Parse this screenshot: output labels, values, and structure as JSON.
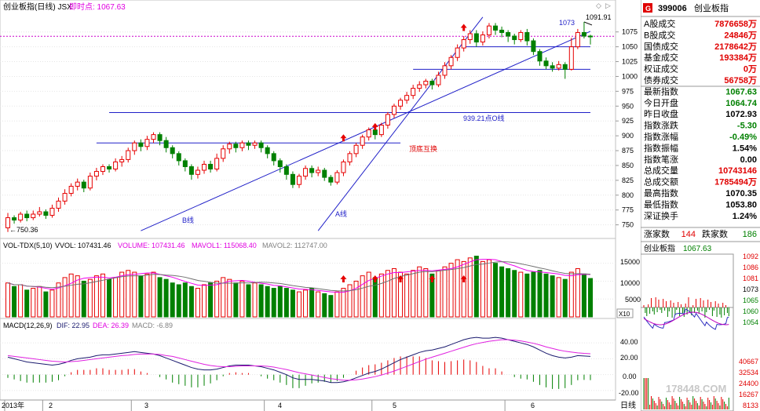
{
  "header": {
    "title": "创业板指(日线) JSX",
    "instant_label": "即时点: 1067.63"
  },
  "annotations": {
    "high_label": "1091.91",
    "left_low_label": "←750.36",
    "line_1073": "1073",
    "neckline_label": "939.21点O线",
    "b_line": "B线",
    "a_line": "A线",
    "top_bottom": "顶底互换"
  },
  "volume_panel": {
    "legend": {
      "name": "VOL-TDX(5,10)",
      "vvol": "VVOL: 107431.46",
      "volume": "VOLUME: 107431.46",
      "mavol1": "MAVOL1: 115068.40",
      "mavol2": "MAVOL2: 112747.00"
    },
    "y_ticks": [
      "15000",
      "10000",
      "5000"
    ],
    "unit": "X10"
  },
  "macd_panel": {
    "legend": {
      "name": "MACD(12,26,9)",
      "dif": "DIF: 22.95",
      "dea": "DEA: 26.39",
      "macd": "MACD: -6.89"
    },
    "y_ticks": [
      "40.00",
      "20.00",
      "0.00",
      "-20.00"
    ]
  },
  "x_axis": {
    "labels": [
      "2013年",
      "2",
      "3",
      "4",
      "5",
      "6"
    ],
    "period": "日线"
  },
  "sidebar": {
    "code": "399006",
    "name": "创业板指",
    "badge": "G",
    "rows": [
      {
        "label": "A股成交",
        "value": "7876658万"
      },
      {
        "label": "B股成交",
        "value": "24846万"
      },
      {
        "label": "国债成交",
        "value": "2178642万"
      },
      {
        "label": "基金成交",
        "value": "193384万"
      },
      {
        "label": "权证成交",
        "value": "0万"
      },
      {
        "label": "债券成交",
        "value": "56758万"
      },
      {
        "label": "最新指数",
        "value": "1067.63"
      },
      {
        "label": "今日开盘",
        "value": "1064.74"
      },
      {
        "label": "昨日收盘",
        "value": "1072.93"
      },
      {
        "label": "指数涨跌",
        "value": "-5.30"
      },
      {
        "label": "指数涨幅",
        "value": "-0.49%"
      },
      {
        "label": "指数振幅",
        "value": "1.54%"
      },
      {
        "label": "指数笔涨",
        "value": "0.00"
      },
      {
        "label": "总成交量",
        "value": "10743146"
      },
      {
        "label": "总成交额",
        "value": "1785494万"
      },
      {
        "label": "最高指数",
        "value": "1070.35"
      },
      {
        "label": "最低指数",
        "value": "1053.80"
      },
      {
        "label": "深证换手",
        "value": "1.24%"
      }
    ],
    "rise_label": "涨家数",
    "rise_value": "144",
    "fall_label": "跌家数",
    "fall_value": "186",
    "mini_title": "创业板指",
    "mini_price": "1067.63",
    "mini_ticks": [
      "1092",
      "1086",
      "1081",
      "1073",
      "1065",
      "1060",
      "1054"
    ],
    "mini_vol_ticks": [
      "40667",
      "32534",
      "24400",
      "16267",
      "8133"
    ]
  },
  "watermark": "178448.COM",
  "colors": {
    "up": "#e60000",
    "down": "#008000",
    "trend": "#2020c8",
    "ma1": "#ee00ee",
    "dif": "#1a1a6e",
    "dea": "#e020e0",
    "dashed": "#cc00cc"
  },
  "chart_data": [
    {
      "type": "candlestick",
      "title": "创业板指(日线)",
      "ylim": [
        735,
        1105
      ],
      "y_ticks": [
        750,
        775,
        800,
        825,
        850,
        875,
        900,
        925,
        950,
        975,
        1000,
        1025,
        1050,
        1075
      ],
      "x_labels": [
        "2013年",
        "2",
        "3",
        "4",
        "5",
        "6"
      ],
      "candles": [
        [
          745,
          762,
          738,
          770
        ],
        [
          762,
          758,
          752,
          766
        ],
        [
          758,
          768,
          754,
          772
        ],
        [
          768,
          762,
          756,
          774
        ],
        [
          762,
          768,
          758,
          774
        ],
        [
          768,
          772,
          764,
          780
        ],
        [
          772,
          766,
          760,
          776
        ],
        [
          766,
          778,
          762,
          784
        ],
        [
          778,
          790,
          772,
          796
        ],
        [
          790,
          803,
          784,
          810
        ],
        [
          803,
          815,
          798,
          820
        ],
        [
          815,
          822,
          808,
          828
        ],
        [
          822,
          812,
          805,
          826
        ],
        [
          812,
          832,
          808,
          838
        ],
        [
          832,
          840,
          825,
          846
        ],
        [
          840,
          848,
          834,
          852
        ],
        [
          848,
          844,
          838,
          852
        ],
        [
          844,
          856,
          840,
          862
        ],
        [
          856,
          860,
          848,
          866
        ],
        [
          860,
          875,
          855,
          880
        ],
        [
          875,
          888,
          868,
          892
        ],
        [
          888,
          882,
          874,
          894
        ],
        [
          882,
          894,
          876,
          900
        ],
        [
          894,
          902,
          888,
          906
        ],
        [
          902,
          892,
          884,
          906
        ],
        [
          892,
          880,
          872,
          898
        ],
        [
          880,
          870,
          862,
          884
        ],
        [
          870,
          858,
          850,
          874
        ],
        [
          858,
          848,
          840,
          862
        ],
        [
          848,
          835,
          826,
          852
        ],
        [
          835,
          842,
          828,
          848
        ],
        [
          842,
          852,
          836,
          858
        ],
        [
          852,
          844,
          838,
          858
        ],
        [
          844,
          862,
          840,
          870
        ],
        [
          862,
          878,
          856,
          884
        ],
        [
          878,
          886,
          870,
          890
        ],
        [
          886,
          880,
          872,
          890
        ],
        [
          880,
          888,
          874,
          892
        ],
        [
          888,
          884,
          876,
          892
        ],
        [
          884,
          888,
          878,
          892
        ],
        [
          888,
          880,
          872,
          892
        ],
        [
          880,
          870,
          862,
          884
        ],
        [
          870,
          858,
          850,
          874
        ],
        [
          858,
          848,
          838,
          862
        ],
        [
          848,
          835,
          826,
          852
        ],
        [
          835,
          818,
          812,
          840
        ],
        [
          818,
          832,
          812,
          836
        ],
        [
          832,
          845,
          826,
          850
        ],
        [
          845,
          838,
          830,
          850
        ],
        [
          838,
          842,
          832,
          848
        ],
        [
          842,
          830,
          824,
          846
        ],
        [
          830,
          822,
          816,
          834
        ],
        [
          822,
          838,
          818,
          842
        ],
        [
          838,
          856,
          832,
          860
        ],
        [
          856,
          870,
          850,
          874
        ],
        [
          870,
          884,
          864,
          888
        ],
        [
          884,
          898,
          878,
          902
        ],
        [
          898,
          910,
          892,
          914
        ],
        [
          910,
          902,
          894,
          914
        ],
        [
          902,
          918,
          898,
          922
        ],
        [
          918,
          936,
          912,
          940
        ],
        [
          936,
          950,
          930,
          954
        ],
        [
          950,
          960,
          944,
          964
        ],
        [
          960,
          968,
          954,
          974
        ],
        [
          968,
          980,
          962,
          986
        ],
        [
          980,
          986,
          974,
          992
        ],
        [
          986,
          992,
          980,
          996
        ],
        [
          992,
          986,
          978,
          996
        ],
        [
          986,
          1002,
          982,
          1008
        ],
        [
          1002,
          1018,
          996,
          1024
        ],
        [
          1018,
          1032,
          1012,
          1036
        ],
        [
          1032,
          1048,
          1026,
          1054
        ],
        [
          1048,
          1062,
          1042,
          1068
        ],
        [
          1062,
          1072,
          1055,
          1078
        ],
        [
          1072,
          1058,
          1050,
          1078
        ],
        [
          1058,
          1070,
          1052,
          1076
        ],
        [
          1070,
          1085,
          1064,
          1090
        ],
        [
          1085,
          1078,
          1070,
          1090
        ],
        [
          1078,
          1074,
          1066,
          1084
        ],
        [
          1074,
          1068,
          1058,
          1078
        ],
        [
          1068,
          1062,
          1054,
          1072
        ],
        [
          1062,
          1074,
          1058,
          1078
        ],
        [
          1074,
          1060,
          1052,
          1080
        ],
        [
          1060,
          1042,
          1036,
          1064
        ],
        [
          1042,
          1026,
          1018,
          1046
        ],
        [
          1026,
          1018,
          1012,
          1032
        ],
        [
          1018,
          1014,
          1008,
          1024
        ],
        [
          1014,
          1020,
          1010,
          1026
        ],
        [
          1020,
          1012,
          996,
          1024
        ],
        [
          1012,
          1050,
          1010,
          1065
        ],
        [
          1050,
          1074,
          1046,
          1080
        ],
        [
          1074,
          1068,
          1064,
          1091.91
        ],
        [
          1068,
          1067.63,
          1053.8,
          1070.35
        ]
      ]
    },
    {
      "type": "bar",
      "title": "VOL-TDX(5,10)",
      "ylim": [
        0,
        18000
      ],
      "series": [
        {
          "name": "VOLUME",
          "values": [
            9500,
            8500,
            9000,
            7500,
            8000,
            8500,
            7000,
            7500,
            9500,
            11000,
            12000,
            11500,
            10000,
            10500,
            11500,
            12000,
            10500,
            11000,
            12500,
            13000,
            12500,
            11500,
            12000,
            12500,
            11000,
            10500,
            9500,
            9000,
            9500,
            8500,
            8000,
            9000,
            9500,
            10000,
            11000,
            10500,
            9500,
            10000,
            9000,
            9500,
            9000,
            8500,
            8000,
            8500,
            8000,
            7500,
            7000,
            7500,
            8000,
            7000,
            6500,
            6000,
            7000,
            8000,
            9000,
            10000,
            11500,
            12500,
            11000,
            12000,
            13000,
            13500,
            12500,
            12000,
            13000,
            14000,
            13500,
            12000,
            13000,
            14000,
            15000,
            16000,
            15500,
            16500,
            17000,
            15500,
            16000,
            15000,
            14000,
            13500,
            13000,
            12500,
            12000,
            12500,
            13000,
            12000,
            11500,
            11000,
            10500,
            12500,
            13500,
            12000,
            10743.146
          ]
        },
        {
          "name": "MAVOL1"
        },
        {
          "name": "MAVOL2"
        }
      ]
    },
    {
      "type": "line",
      "title": "MACD(12,26,9)",
      "ylim": [
        -28,
        55
      ],
      "series": [
        {
          "name": "DIF",
          "values": [
            22,
            20,
            18,
            16,
            15,
            14,
            13,
            12,
            13,
            15,
            18,
            20,
            21,
            22,
            24,
            25,
            25,
            26,
            27,
            28,
            29,
            28,
            27,
            26,
            24,
            21,
            18,
            15,
            12,
            9,
            7,
            6,
            6,
            7,
            9,
            11,
            12,
            12,
            12,
            11,
            10,
            8,
            6,
            3,
            0,
            -4,
            -6,
            -6,
            -6,
            -7,
            -8,
            -10,
            -10,
            -9,
            -7,
            -4,
            -1,
            2,
            4,
            7,
            11,
            15,
            19,
            22,
            25,
            28,
            30,
            31,
            33,
            35,
            38,
            41,
            44,
            46,
            47,
            46,
            46,
            47,
            46,
            44,
            42,
            40,
            38,
            35,
            31,
            27,
            24,
            22,
            21,
            22,
            24,
            23.5,
            22.95
          ]
        },
        {
          "name": "DEA",
          "values": [
            24,
            23,
            22,
            21,
            20,
            19,
            18,
            17,
            16.5,
            16,
            16.5,
            17,
            18,
            19,
            20,
            21,
            22,
            23,
            24,
            24.5,
            25.5,
            26,
            26,
            26,
            25.5,
            24,
            23,
            21,
            19,
            17,
            15,
            13,
            11.5,
            10.5,
            10,
            10,
            10.5,
            11,
            11,
            11,
            11,
            10.5,
            9.5,
            8,
            6.5,
            4.5,
            2.5,
            1,
            -0.5,
            -2,
            -3.5,
            -5,
            -6,
            -7,
            -7,
            -6.5,
            -5.5,
            -4,
            -2.5,
            -0.5,
            2,
            4.5,
            7.5,
            10.5,
            13.5,
            16.5,
            19.5,
            22,
            24.5,
            27,
            29.5,
            32,
            34.5,
            37,
            39,
            40.5,
            42,
            43,
            44,
            44,
            43.5,
            42.5,
            41,
            39.5,
            37.5,
            35,
            33,
            31,
            29.5,
            28.5,
            27.5,
            26.8,
            26.39
          ]
        },
        {
          "name": "MACD",
          "values": [
            -4,
            -6,
            -8,
            -10,
            -10,
            -10,
            -10,
            -9,
            -7,
            -2,
            3,
            6,
            6,
            6,
            8,
            8,
            6,
            6,
            6,
            7,
            7,
            4,
            2,
            0,
            -3,
            -6,
            -10,
            -12,
            -14,
            -16,
            -16,
            -14,
            -11,
            -7,
            -2,
            2,
            3,
            2,
            2,
            0,
            -2,
            -5,
            -7,
            -10,
            -13,
            -17,
            -17,
            -14,
            -11,
            -10,
            -9,
            -10,
            -8,
            -4,
            0,
            5,
            9,
            12,
            13,
            15,
            18,
            21,
            23,
            23,
            23,
            23,
            21,
            18,
            17,
            16,
            17,
            18,
            19,
            18,
            16,
            11,
            8,
            8,
            4,
            0,
            -3,
            -5,
            -6,
            -9,
            -13,
            -16,
            -18,
            -18,
            -17,
            -13,
            -7,
            -6.6,
            -6.89
          ]
        }
      ]
    }
  ]
}
